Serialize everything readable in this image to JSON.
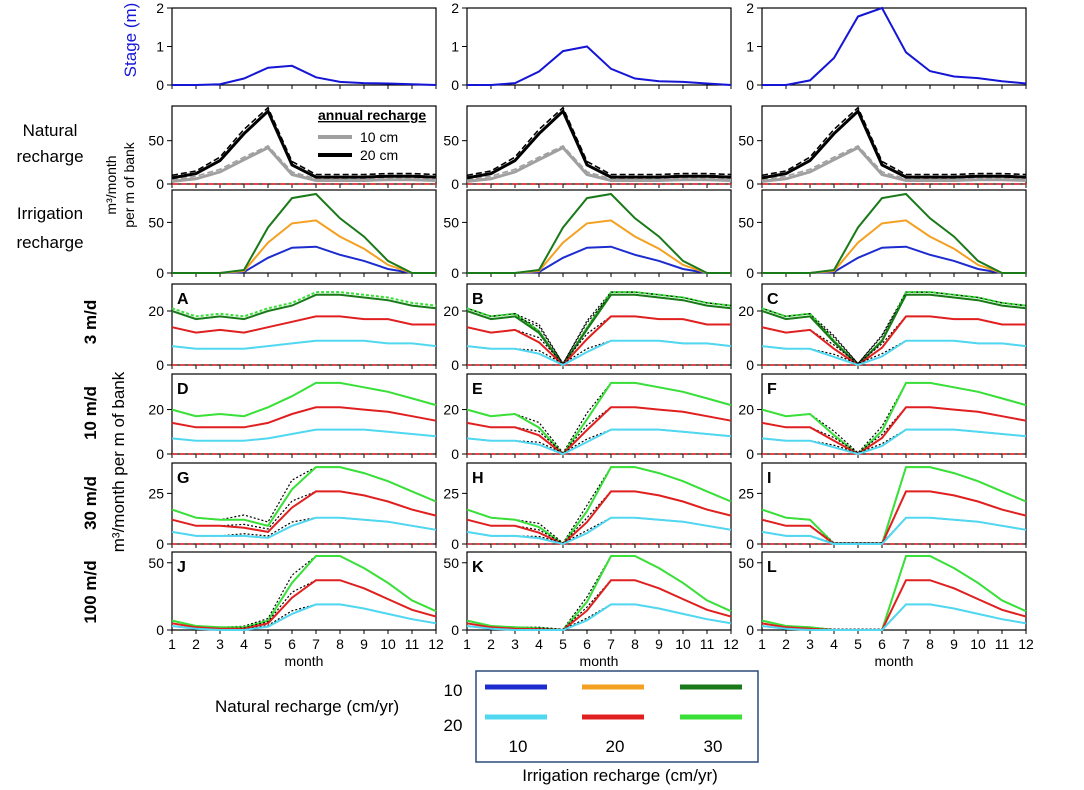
{
  "chart_data": {
    "type": "line",
    "x": [
      1,
      2,
      3,
      4,
      5,
      6,
      7,
      8,
      9,
      10,
      11,
      12
    ],
    "x_ticks": [
      "1",
      "2",
      "3",
      "4",
      "5",
      "6",
      "7",
      "8",
      "9",
      "10",
      "11",
      "12"
    ],
    "xlabel": "month",
    "columns": 3,
    "stage": {
      "ylabel": "Stage (m)",
      "ylim": [
        0,
        2
      ],
      "yticks": [
        "0",
        "1",
        "2"
      ],
      "color": "#1515d6",
      "series": [
        [
          0,
          0,
          0.02,
          0.17,
          0.45,
          0.5,
          0.2,
          0.08,
          0.05,
          0.04,
          0.02,
          0
        ],
        [
          0,
          0,
          0.05,
          0.35,
          0.88,
          1.0,
          0.42,
          0.17,
          0.1,
          0.08,
          0.04,
          0
        ],
        [
          0,
          0,
          0.12,
          0.7,
          1.78,
          2.0,
          0.85,
          0.36,
          0.22,
          0.18,
          0.1,
          0.04
        ]
      ]
    },
    "natural_recharge": {
      "row_label": [
        "Natural",
        "recharge"
      ],
      "ylim": [
        0,
        90
      ],
      "yticks": [
        "0",
        "50"
      ],
      "legend_title": "annual recharge",
      "series": [
        {
          "name": "10 cm",
          "color": "#a0a0a0",
          "values": [
            3,
            6,
            14,
            28,
            42,
            11,
            4,
            4,
            4,
            5,
            5,
            4
          ]
        },
        {
          "name": "10 cm dashed",
          "color": "#a0a0a0",
          "dash": true,
          "values": [
            5,
            9,
            17,
            31,
            44,
            14,
            6,
            6,
            6,
            7,
            7,
            6
          ]
        },
        {
          "name": "20 cm",
          "color": "#000000",
          "values": [
            7,
            12,
            27,
            58,
            84,
            22,
            8,
            8,
            8,
            9,
            9,
            8
          ]
        },
        {
          "name": "20 cm dashed",
          "color": "#000000",
          "dash": true,
          "values": [
            10,
            15,
            31,
            63,
            88,
            26,
            11,
            11,
            11,
            12,
            12,
            11
          ]
        },
        {
          "name": "zero",
          "color": "#e02020",
          "dash": true,
          "values": [
            0,
            0,
            0,
            0,
            0,
            0,
            0,
            0,
            0,
            0,
            0,
            0
          ]
        }
      ]
    },
    "irrigation_recharge": {
      "row_label": [
        "Irrigation",
        "recharge"
      ],
      "ylim": [
        0,
        82
      ],
      "yticks": [
        "0",
        "50"
      ],
      "series": [
        {
          "name": "10 cm/yr",
          "color": "#1c2ccf",
          "values": [
            0,
            0,
            0,
            1,
            15,
            25,
            26,
            18,
            12,
            4,
            0,
            0
          ]
        },
        {
          "name": "20 cm/yr",
          "color": "#f4a020",
          "values": [
            0,
            0,
            0,
            2,
            30,
            49,
            52,
            36,
            24,
            8,
            0,
            0
          ]
        },
        {
          "name": "30 cm/yr",
          "color": "#1a7a1a",
          "values": [
            0,
            0,
            0,
            3,
            45,
            74,
            78,
            54,
            36,
            12,
            0,
            0
          ]
        }
      ],
      "ylabel_shared": [
        "m³/month",
        "per m of bank"
      ]
    },
    "aquifer_rows": [
      {
        "label": "3 m/d",
        "ylim": [
          0,
          30
        ],
        "yticks": [
          "0",
          "20"
        ],
        "panels": [
          "A",
          "B",
          "C"
        ],
        "base": {
          "light_green": [
            21,
            18,
            19,
            18,
            21,
            23,
            27,
            27,
            26,
            25,
            23,
            22
          ],
          "dark_green": [
            20,
            17,
            18,
            17,
            20,
            22,
            26,
            26,
            25,
            24,
            22,
            21
          ],
          "red": [
            14,
            12,
            13,
            12,
            14,
            16,
            18,
            18,
            17,
            17,
            15,
            15
          ],
          "cyan": [
            7,
            6,
            6,
            6,
            7,
            8,
            9,
            9,
            9,
            8,
            8,
            7
          ]
        }
      },
      {
        "label": "10 m/d",
        "ylim": [
          0,
          36
        ],
        "yticks": [
          "0",
          "20"
        ],
        "panels": [
          "D",
          "E",
          "F"
        ],
        "base": {
          "green": [
            20,
            17,
            18,
            17,
            21,
            26,
            32,
            32,
            30,
            28,
            25,
            22
          ],
          "red": [
            14,
            12,
            12,
            12,
            14,
            18,
            21,
            21,
            20,
            19,
            17,
            15
          ],
          "cyan": [
            7,
            6,
            6,
            6,
            7,
            9,
            11,
            11,
            11,
            10,
            9,
            8
          ]
        }
      },
      {
        "label": "30 m/d",
        "ylim": [
          0,
          40
        ],
        "yticks": [
          "0",
          "25"
        ],
        "panels": [
          "G",
          "H",
          "I"
        ],
        "base": {
          "green": [
            17,
            13,
            12,
            12,
            18,
            27,
            38,
            38,
            35,
            31,
            26,
            21
          ],
          "red": [
            12,
            9,
            9,
            8,
            12,
            18,
            26,
            26,
            24,
            21,
            17,
            14
          ],
          "cyan": [
            6,
            4,
            4,
            4,
            6,
            9,
            13,
            13,
            12,
            11,
            9,
            7
          ]
        }
      },
      {
        "label": "100 m/d",
        "ylim": [
          0,
          58
        ],
        "yticks": [
          "0",
          "50"
        ],
        "panels": [
          "J",
          "K",
          "L"
        ],
        "base": {
          "green": [
            7,
            3,
            2,
            2,
            14,
            35,
            55,
            55,
            46,
            35,
            22,
            14
          ],
          "red": [
            5,
            2,
            1,
            1,
            10,
            24,
            37,
            37,
            31,
            23,
            15,
            10
          ],
          "cyan": [
            3,
            1,
            0,
            0,
            5,
            12,
            19,
            19,
            16,
            12,
            8,
            5
          ]
        }
      }
    ],
    "shared_ylabel": "m³/month per m of bank",
    "legend": {
      "row_title": "Natural recharge (cm/yr)",
      "row_values": [
        "10",
        "20"
      ],
      "column_title": "Irrigation recharge (cm/yr)",
      "column_values": [
        "10",
        "20",
        "30"
      ],
      "colors": [
        [
          "#1c2ccf",
          "#f4a020",
          "#1a7a1a"
        ],
        [
          "#50d8f0",
          "#e02020",
          "#38e038"
        ]
      ]
    }
  }
}
